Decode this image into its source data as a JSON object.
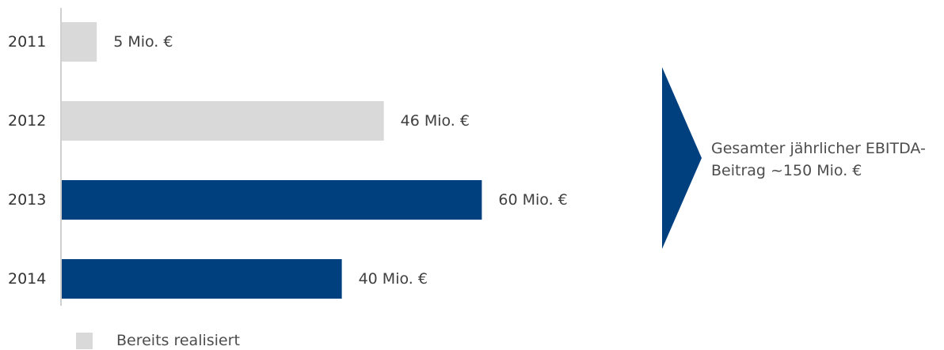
{
  "chart_data": {
    "type": "bar",
    "orientation": "horizontal",
    "categories": [
      "2011",
      "2012",
      "2013",
      "2014"
    ],
    "values": [
      5,
      46,
      60,
      40
    ],
    "value_labels": [
      "5 Mio. €",
      "46 Mio. €",
      "60 Mio. €",
      "40 Mio. €"
    ],
    "unit": "Mio. €",
    "xlim": [
      0,
      70
    ],
    "grid": false,
    "bar_colors": [
      "#d9d9d9",
      "#d9d9d9",
      "#00407f",
      "#00407f"
    ],
    "legend": [
      {
        "label": "Bereits realisiert",
        "color": "#d9d9d9"
      }
    ],
    "legend_position": "bottom-left",
    "annotation": {
      "text": "Gesamter jährlicher EBITDA-Beitrag ~150 Mio. €",
      "shape": "right-pointing triangle",
      "color": "#00407f"
    }
  }
}
